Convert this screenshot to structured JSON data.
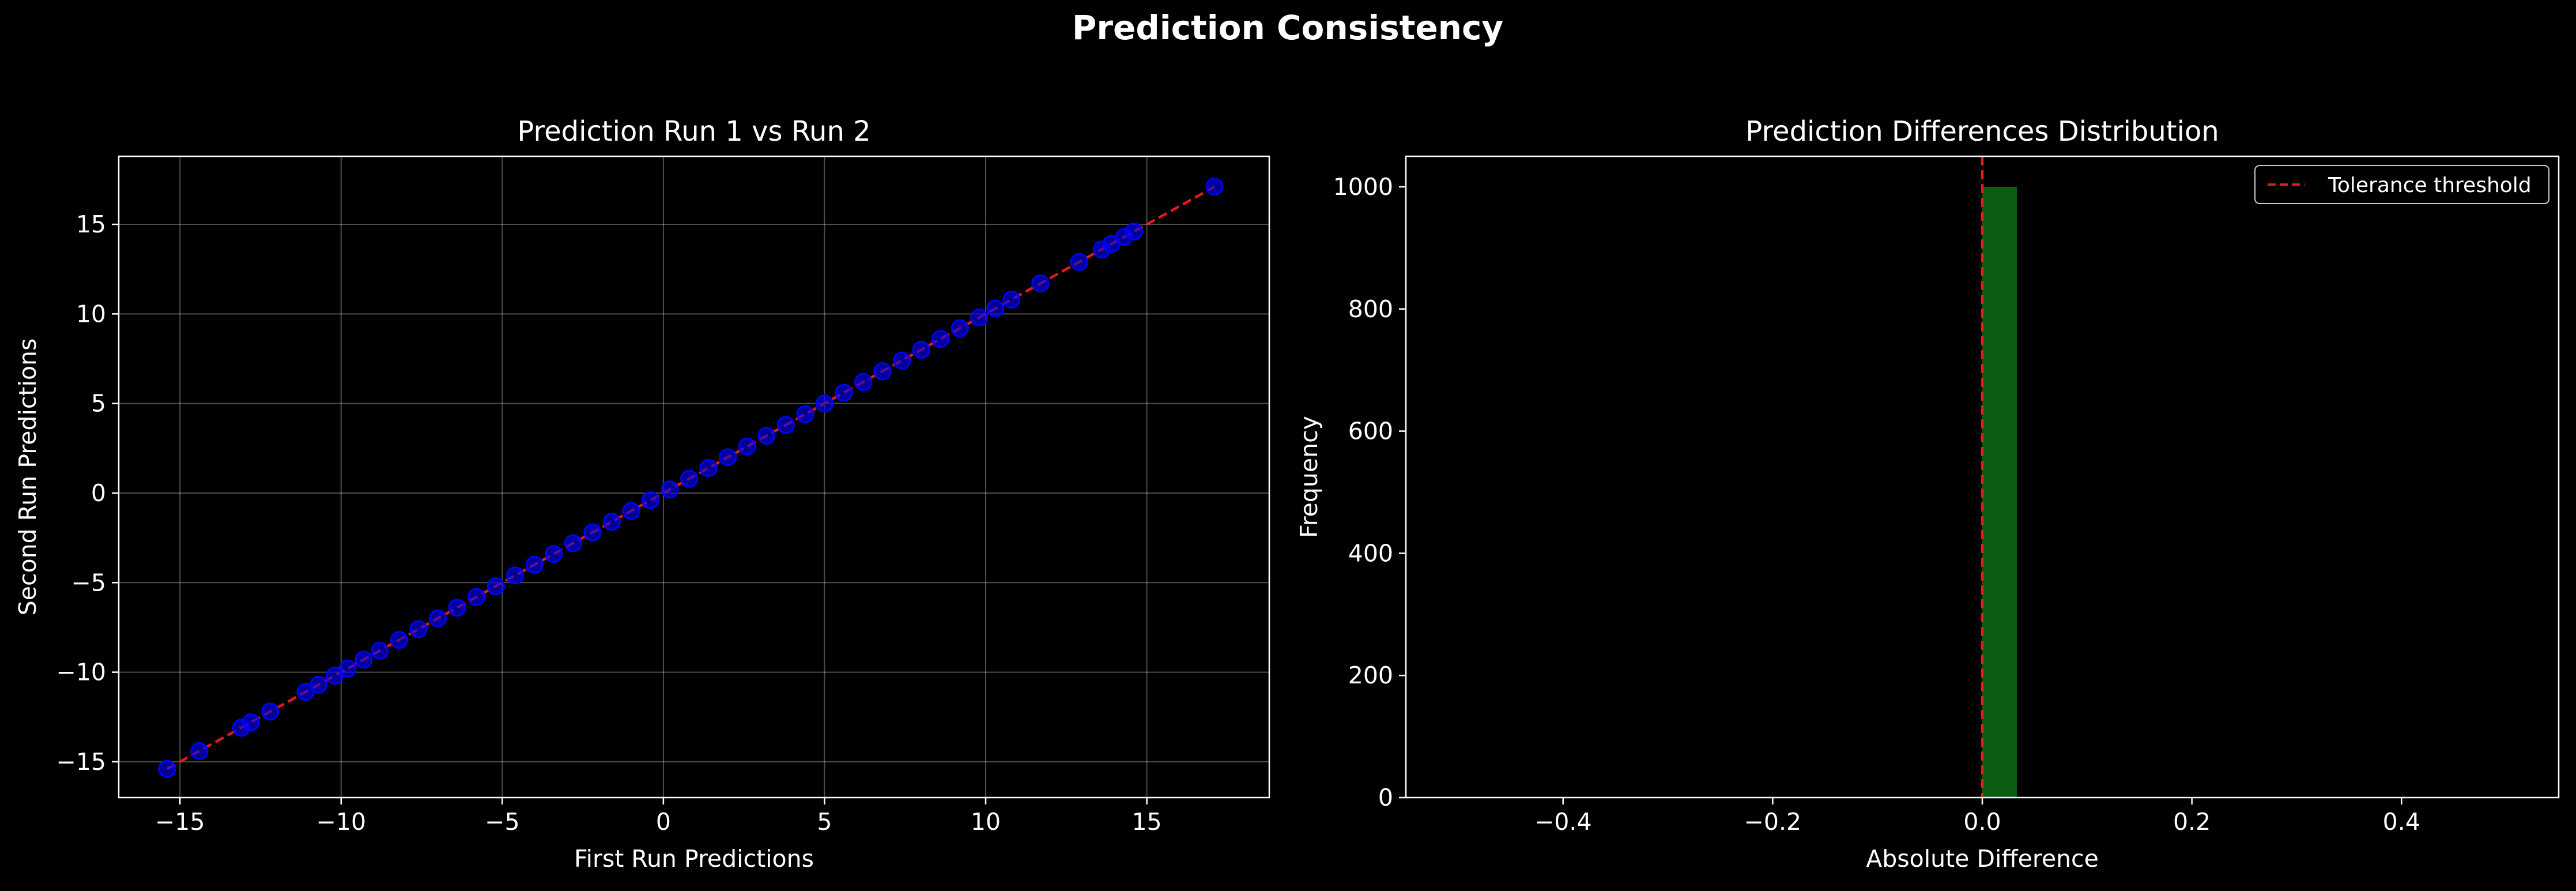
{
  "figure": {
    "suptitle": "Prediction Consistency",
    "background": "#000000"
  },
  "chart_data": [
    {
      "type": "scatter",
      "title": "Prediction Run 1 vs Run 2",
      "xlabel": "First Run Predictions",
      "ylabel": "Second Run Predictions",
      "xlim": [
        -16.9,
        18.8
      ],
      "ylim": [
        -17.0,
        18.8
      ],
      "xticks": [
        -15,
        -10,
        -5,
        0,
        5,
        10,
        15
      ],
      "yticks": [
        -15,
        -10,
        -5,
        0,
        5,
        10,
        15
      ],
      "xtick_labels": [
        "−15",
        "−10",
        "−5",
        "0",
        "5",
        "10",
        "15"
      ],
      "ytick_labels": [
        "−15",
        "−10",
        "−5",
        "0",
        "5",
        "10",
        "15"
      ],
      "grid": true,
      "point_color": "#0000ff",
      "line_color": "#e41a1c",
      "points": [
        [
          -15.4,
          -15.4
        ],
        [
          -14.4,
          -14.4
        ],
        [
          -13.1,
          -13.1
        ],
        [
          -12.8,
          -12.8
        ],
        [
          -12.2,
          -12.2
        ],
        [
          -11.1,
          -11.1
        ],
        [
          -10.7,
          -10.7
        ],
        [
          -10.2,
          -10.2
        ],
        [
          -9.8,
          -9.8
        ],
        [
          -9.3,
          -9.3
        ],
        [
          -8.8,
          -8.8
        ],
        [
          -8.2,
          -8.2
        ],
        [
          -7.6,
          -7.6
        ],
        [
          -7.0,
          -7.0
        ],
        [
          -6.4,
          -6.4
        ],
        [
          -5.8,
          -5.8
        ],
        [
          -5.2,
          -5.2
        ],
        [
          -4.6,
          -4.6
        ],
        [
          -4.0,
          -4.0
        ],
        [
          -3.4,
          -3.4
        ],
        [
          -2.8,
          -2.8
        ],
        [
          -2.2,
          -2.2
        ],
        [
          -1.6,
          -1.6
        ],
        [
          -1.0,
          -1.0
        ],
        [
          -0.4,
          -0.4
        ],
        [
          0.2,
          0.2
        ],
        [
          0.8,
          0.8
        ],
        [
          1.4,
          1.4
        ],
        [
          2.0,
          2.0
        ],
        [
          2.6,
          2.6
        ],
        [
          3.2,
          3.2
        ],
        [
          3.8,
          3.8
        ],
        [
          4.4,
          4.4
        ],
        [
          5.0,
          5.0
        ],
        [
          5.6,
          5.6
        ],
        [
          6.2,
          6.2
        ],
        [
          6.8,
          6.8
        ],
        [
          7.4,
          7.4
        ],
        [
          8.0,
          8.0
        ],
        [
          8.6,
          8.6
        ],
        [
          9.2,
          9.2
        ],
        [
          9.8,
          9.8
        ],
        [
          10.3,
          10.3
        ],
        [
          10.8,
          10.8
        ],
        [
          11.7,
          11.7
        ],
        [
          12.9,
          12.9
        ],
        [
          13.6,
          13.6
        ],
        [
          13.9,
          13.9
        ],
        [
          14.3,
          14.3
        ],
        [
          14.6,
          14.6
        ],
        [
          17.1,
          17.1
        ]
      ],
      "reference_line": [
        [
          -15.4,
          -15.4
        ],
        [
          17.1,
          17.1
        ]
      ]
    },
    {
      "type": "bar",
      "title": "Prediction Differences Distribution",
      "xlabel": "Absolute Difference",
      "ylabel": "Frequency",
      "xlim": [
        -0.55,
        0.55
      ],
      "ylim": [
        0,
        1050
      ],
      "xticks": [
        -0.4,
        -0.2,
        0.0,
        0.2,
        0.4
      ],
      "yticks": [
        0,
        200,
        400,
        600,
        800,
        1000
      ],
      "xtick_labels": [
        "−0.4",
        "−0.2",
        "0.0",
        "0.2",
        "0.4"
      ],
      "ytick_labels": [
        "0",
        "200",
        "400",
        "600",
        "800",
        "1000"
      ],
      "grid": false,
      "bins": [
        {
          "x0": 0.0,
          "x1": 0.033,
          "count": 1000
        }
      ],
      "bar_color": "#0b5d12",
      "threshold": 0.0,
      "threshold_color": "#e41a1c",
      "legend": {
        "position": "top-right",
        "entries": [
          "Tolerance threshold"
        ]
      }
    }
  ]
}
